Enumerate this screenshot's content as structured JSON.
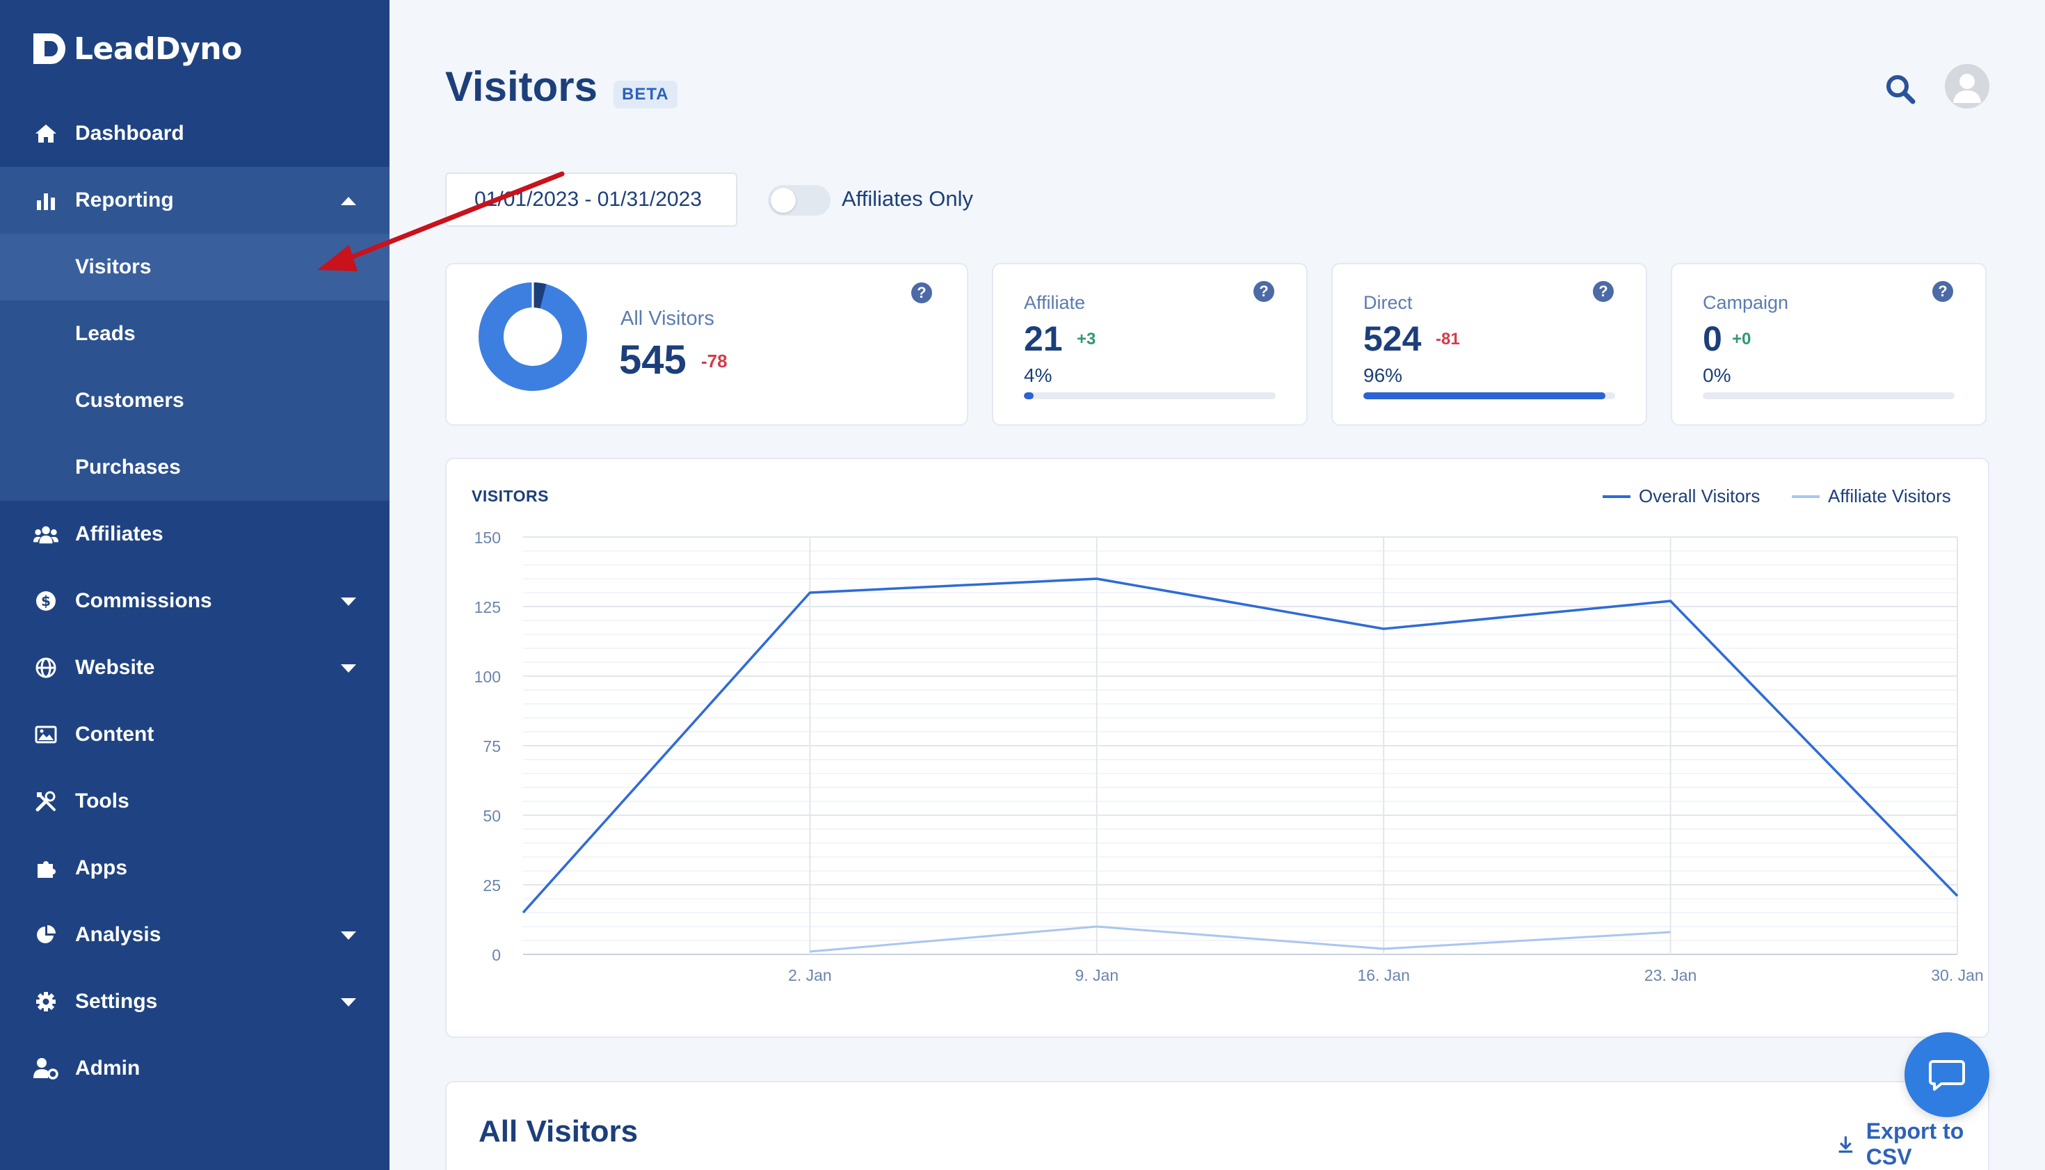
{
  "brand": {
    "name": "LeadDyno"
  },
  "sidebar": {
    "items": [
      {
        "label": "Dashboard",
        "icon": "home-icon"
      },
      {
        "label": "Reporting",
        "icon": "bar-chart-icon",
        "expanded": true,
        "children": [
          "Visitors",
          "Leads",
          "Customers",
          "Purchases"
        ]
      },
      {
        "label": "Affiliates",
        "icon": "users-icon"
      },
      {
        "label": "Commissions",
        "icon": "dollar-icon",
        "caret": true
      },
      {
        "label": "Website",
        "icon": "globe-icon",
        "caret": true
      },
      {
        "label": "Content",
        "icon": "image-icon"
      },
      {
        "label": "Tools",
        "icon": "tools-icon"
      },
      {
        "label": "Apps",
        "icon": "puzzle-icon"
      },
      {
        "label": "Analysis",
        "icon": "pie-chart-icon",
        "caret": true
      },
      {
        "label": "Settings",
        "icon": "gear-icon",
        "caret": true
      },
      {
        "label": "Admin",
        "icon": "user-gear-icon"
      }
    ],
    "current": "Visitors"
  },
  "header": {
    "title": "Visitors",
    "badge": "BETA"
  },
  "filters": {
    "date_range": "01/01/2023 - 01/31/2023",
    "affiliates_only_label": "Affiliates Only",
    "affiliates_only": false
  },
  "stats": {
    "all": {
      "label": "All Visitors",
      "value": "545",
      "delta": "-78",
      "affiliate_share": 0.04
    },
    "affiliate": {
      "label": "Affiliate",
      "value": "21",
      "delta": "+3",
      "percent": "4%",
      "fraction": 0.04
    },
    "direct": {
      "label": "Direct",
      "value": "524",
      "delta": "-81",
      "percent": "96%",
      "fraction": 0.96
    },
    "campaign": {
      "label": "Campaign",
      "value": "0",
      "delta": "+0",
      "percent": "0%",
      "fraction": 0.0
    }
  },
  "chart": {
    "title": "VISITORS",
    "legend": [
      "Overall Visitors",
      "Affiliate Visitors"
    ]
  },
  "chart_data": {
    "type": "line",
    "ylim": [
      0,
      150
    ],
    "yticks": [
      0,
      25,
      50,
      75,
      100,
      125,
      150
    ],
    "xticks": [
      "2. Jan",
      "9. Jan",
      "16. Jan",
      "23. Jan",
      "30. Jan"
    ],
    "grid": true,
    "legend_position": "top-right",
    "series": [
      {
        "name": "Overall Visitors",
        "color": "#2e6bd6",
        "points": [
          [
            "2022-12-26",
            15
          ],
          [
            "2023-01-02",
            130
          ],
          [
            "2023-01-09",
            135
          ],
          [
            "2023-01-16",
            117
          ],
          [
            "2023-01-23",
            127
          ],
          [
            "2023-01-30",
            21
          ]
        ]
      },
      {
        "name": "Affiliate Visitors",
        "color": "#a9c6f0",
        "points": [
          [
            "2023-01-02",
            1
          ],
          [
            "2023-01-09",
            10
          ],
          [
            "2023-01-16",
            2
          ],
          [
            "2023-01-23",
            8
          ]
        ]
      }
    ]
  },
  "table": {
    "title": "All Visitors",
    "export_label": "Export to CSV"
  }
}
